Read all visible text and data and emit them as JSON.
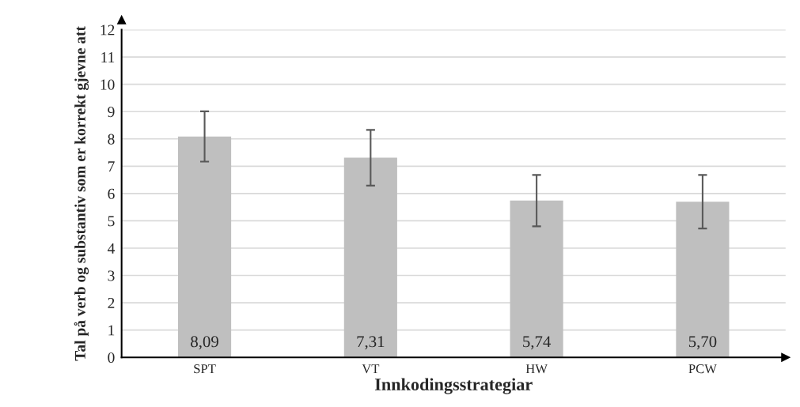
{
  "chart_data": {
    "type": "bar",
    "xlabel": "Innkodingsstrategiar",
    "ylabel": "Tal på verb og substantiv som er korrekt gjevne att",
    "categories": [
      "SPT",
      "VT",
      "HW",
      "PCW"
    ],
    "values": [
      8.09,
      7.31,
      5.74,
      5.7
    ],
    "value_labels": [
      "8,09",
      "7,31",
      "5,74",
      "5,70"
    ],
    "errors": [
      0.92,
      1.02,
      0.94,
      0.98
    ],
    "color": "#bfbfbf",
    "ylim": [
      0,
      12
    ],
    "yticks": [
      0,
      1,
      2,
      3,
      4,
      5,
      6,
      7,
      8,
      9,
      10,
      11,
      12
    ],
    "grid": "y"
  }
}
